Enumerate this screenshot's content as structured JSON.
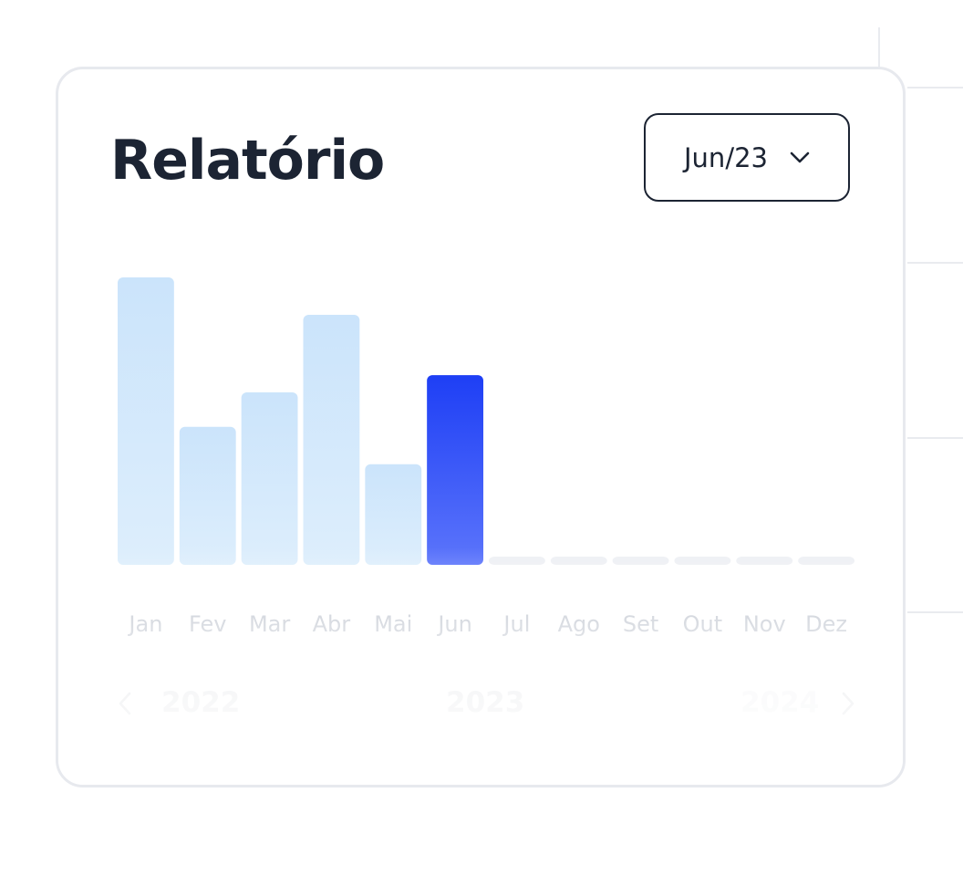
{
  "card": {
    "title": "Relatório"
  },
  "month_select": {
    "value": "Jun/23",
    "icon": "chevron-down-icon"
  },
  "year_nav": {
    "prev_icon": "chevron-left-icon",
    "next_icon": "chevron-right-icon",
    "previous_year": "2022",
    "current_year": "2023",
    "next_year": "2024"
  },
  "colors": {
    "title": "#1c2433",
    "bar_past_top": "#cbe4fb",
    "bar_past_bottom": "#ddeefc",
    "bar_selected_top": "#1e3ff5",
    "bar_selected_bottom": "#5c75fb",
    "bar_empty": "#eef0f4",
    "axis_label": "#b7bdc8"
  },
  "chart_data": {
    "type": "bar",
    "title": "",
    "xlabel": "",
    "ylabel": "",
    "categories": [
      "Jan",
      "Fev",
      "Mar",
      "Abr",
      "Mai",
      "Jun",
      "Jul",
      "Ago",
      "Set",
      "Out",
      "Nov",
      "Dez"
    ],
    "values": [
      100,
      48,
      60,
      87,
      35,
      66,
      null,
      null,
      null,
      null,
      null,
      null
    ],
    "selected_category": "Jun",
    "ylim": [
      0,
      100
    ],
    "grid": false,
    "legend": "none"
  }
}
